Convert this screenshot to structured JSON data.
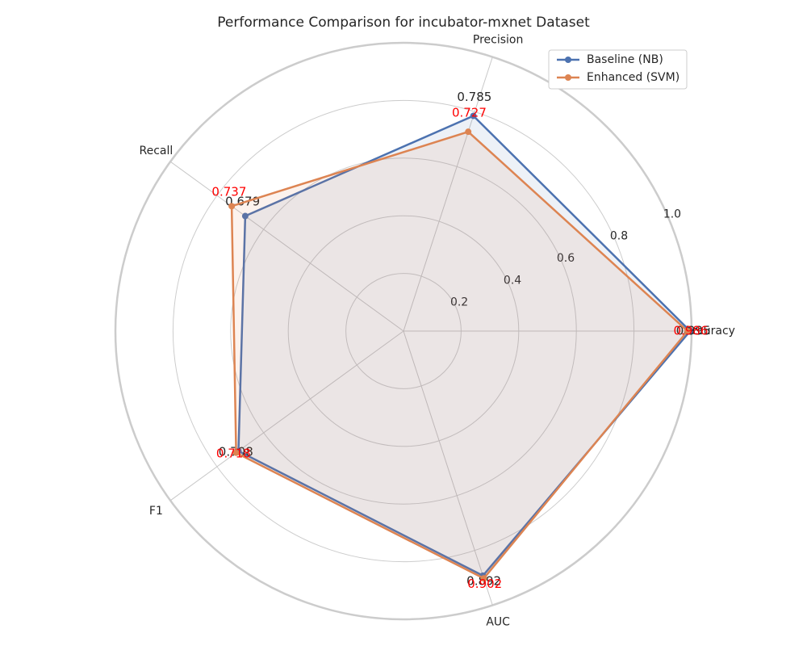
{
  "chart_data": {
    "type": "radar",
    "title": "Performance Comparison for incubator-mxnet Dataset",
    "categories": [
      "Accuracy",
      "Precision",
      "Recall",
      "F1",
      "AUC"
    ],
    "series": [
      {
        "name": "Baseline (NB)",
        "color": "#4c72b0",
        "label_color": "#262626",
        "values": [
          0.995,
          0.785,
          0.679,
          0.708,
          0.892
        ]
      },
      {
        "name": "Enhanced (SVM)",
        "color": "#dd8452",
        "label_color": "#ff0000",
        "values": [
          0.986,
          0.727,
          0.737,
          0.718,
          0.902
        ]
      }
    ],
    "rlim": [
      0,
      1
    ],
    "rticks": [
      0.2,
      0.4,
      0.6,
      0.8,
      {
        "value": 1,
        "label": "1.0"
      }
    ],
    "grid": true,
    "legend": "upper right"
  }
}
